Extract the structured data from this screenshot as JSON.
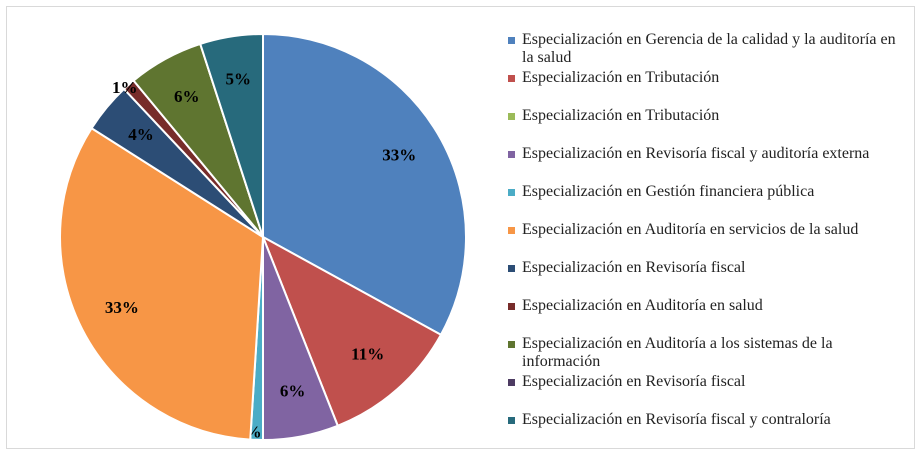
{
  "chart_data": {
    "type": "pie",
    "categories": [
      "Especialización en Gerencia de la calidad y la auditoría en la salud",
      "Especialización en Tributación",
      "Especialización en Tributación",
      "Especialización en Revisoría fiscal y auditoría externa",
      "Especialización en Gestión financiera pública",
      "Especialización en Auditoría en servicios de la salud",
      "Especialización en Revisoría fiscal",
      "Especialización en Auditoría en salud",
      "Especialización en Auditoría a los sistemas de la información",
      "Especialización en Revisoría fiscal",
      "Especialización en Revisoría fiscal y contraloría"
    ],
    "values": [
      33,
      11,
      0,
      6,
      1,
      33,
      4,
      1,
      6,
      0,
      5
    ],
    "value_labels": [
      "33%",
      "11%",
      null,
      "6%",
      "1%",
      "33%",
      "4%",
      "1%",
      "6%",
      null,
      "5%"
    ],
    "colors": [
      "#4f81bd",
      "#c0504d",
      "#9bbb59",
      "#8064a2",
      "#4bacc6",
      "#f79646",
      "#2c4d75",
      "#772c2a",
      "#5f7530",
      "#4d3b62",
      "#276a7c"
    ],
    "legend": "right"
  }
}
